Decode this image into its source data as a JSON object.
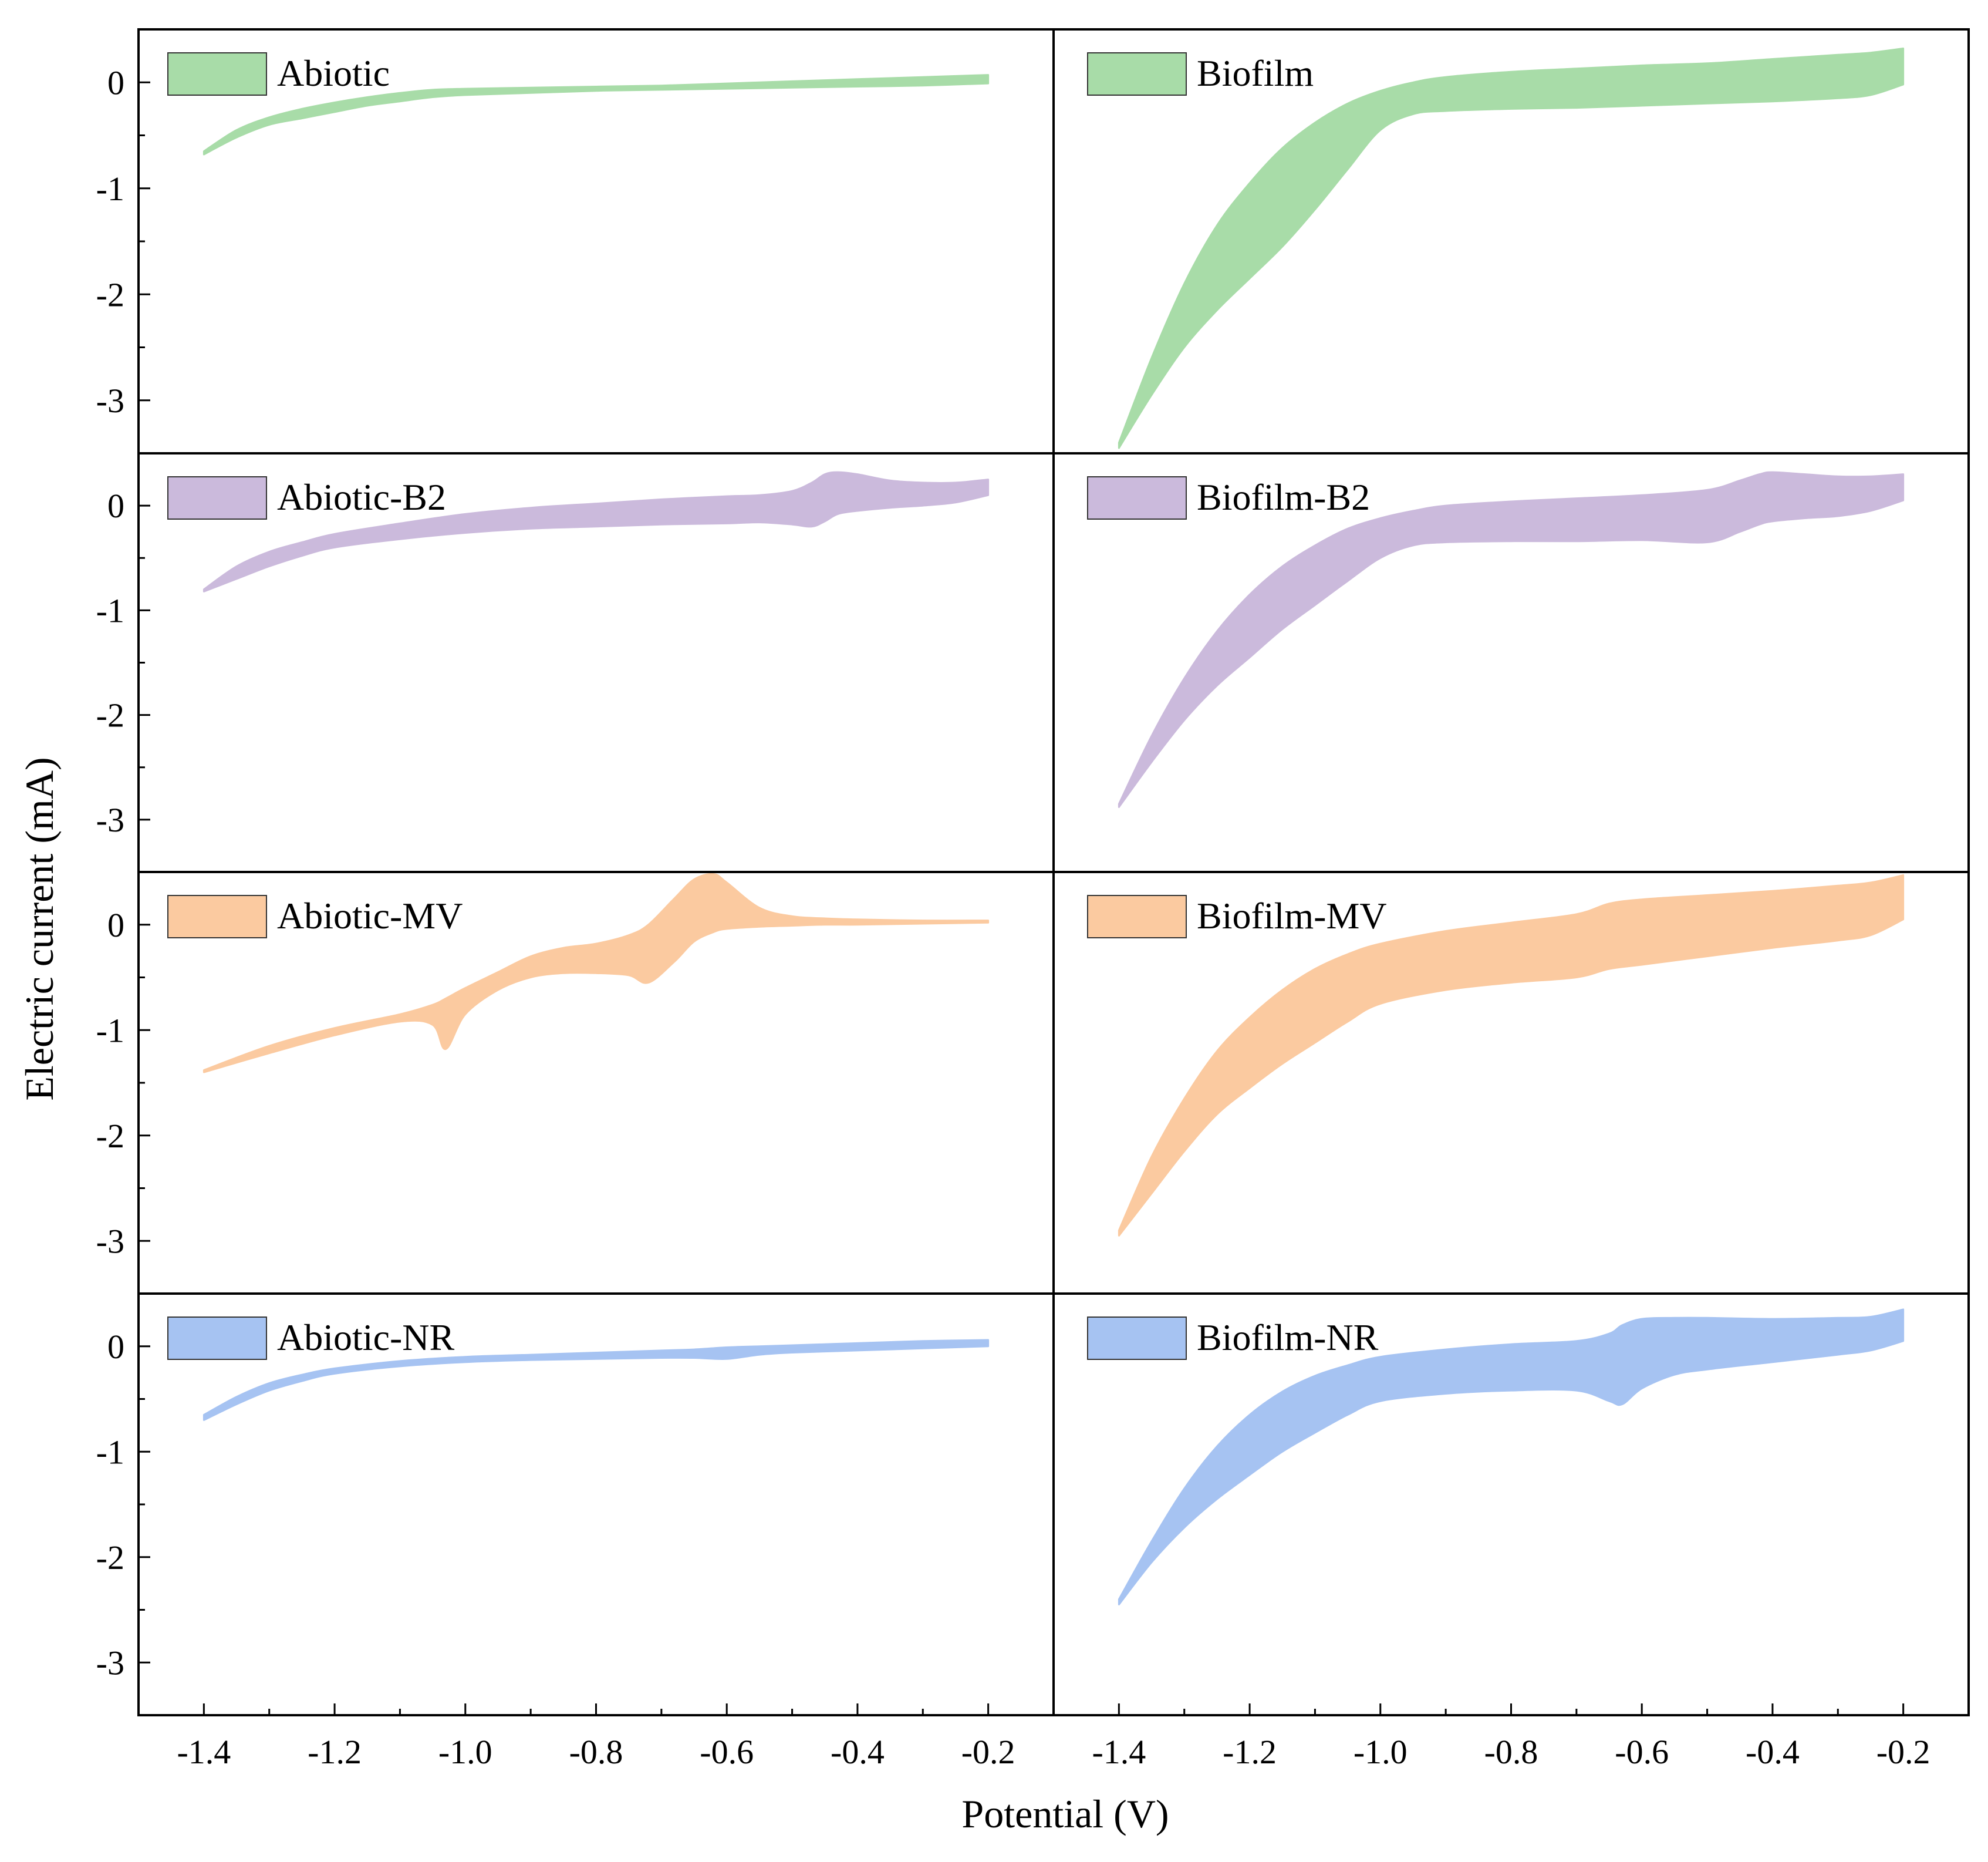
{
  "figure": {
    "xlabel": "Potential (V)",
    "ylabel": "Electric current (mA)",
    "x_ticks": [
      -1.4,
      -1.2,
      -1.0,
      -0.8,
      -0.6,
      -0.4,
      -0.2
    ],
    "x_tick_labels": [
      "-1.4",
      "-1.2",
      "-1.0",
      "-0.8",
      "-0.6",
      "-0.4",
      "-0.2"
    ],
    "y_ticks": [
      0,
      -1,
      -2,
      -3
    ],
    "y_tick_labels": [
      "0",
      "-1",
      "-2",
      "-3"
    ],
    "xlim": [
      -1.5,
      -0.1
    ],
    "ylim": [
      -3.5,
      0.5
    ]
  },
  "chart_data": [
    {
      "type": "area",
      "id": "abiotic",
      "title": "Abiotic",
      "color": "#a8dca8",
      "col": 0,
      "row": 0,
      "x": [
        -1.4,
        -1.35,
        -1.3,
        -1.25,
        -1.2,
        -1.15,
        -1.1,
        -1.05,
        -1.0,
        -0.9,
        -0.8,
        -0.7,
        -0.6,
        -0.5,
        -0.4,
        -0.3,
        -0.2
      ],
      "upper": [
        -0.65,
        -0.45,
        -0.33,
        -0.25,
        -0.19,
        -0.14,
        -0.1,
        -0.07,
        -0.06,
        -0.05,
        -0.04,
        -0.03,
        -0.01,
        0.01,
        0.03,
        0.05,
        0.07
      ],
      "lower": [
        -0.68,
        -0.52,
        -0.4,
        -0.34,
        -0.28,
        -0.22,
        -0.18,
        -0.14,
        -0.12,
        -0.1,
        -0.08,
        -0.07,
        -0.06,
        -0.05,
        -0.04,
        -0.03,
        -0.01
      ]
    },
    {
      "type": "area",
      "id": "biofilm",
      "title": "Biofilm",
      "color": "#a8dca8",
      "col": 1,
      "row": 0,
      "x": [
        -1.4,
        -1.35,
        -1.3,
        -1.25,
        -1.2,
        -1.15,
        -1.1,
        -1.05,
        -1.0,
        -0.95,
        -0.9,
        -0.8,
        -0.7,
        -0.6,
        -0.5,
        -0.4,
        -0.3,
        -0.25,
        -0.2
      ],
      "upper": [
        -3.4,
        -2.6,
        -1.9,
        -1.35,
        -0.95,
        -0.62,
        -0.38,
        -0.2,
        -0.08,
        0.0,
        0.05,
        0.1,
        0.13,
        0.16,
        0.18,
        0.22,
        0.26,
        0.28,
        0.32
      ],
      "lower": [
        -3.45,
        -2.95,
        -2.5,
        -2.15,
        -1.85,
        -1.55,
        -1.2,
        -0.82,
        -0.45,
        -0.3,
        -0.27,
        -0.25,
        -0.24,
        -0.22,
        -0.2,
        -0.18,
        -0.15,
        -0.12,
        -0.02
      ]
    },
    {
      "type": "area",
      "id": "abiotic-b2",
      "title": "Abiotic-B2",
      "color": "#cbbadc",
      "col": 0,
      "row": 1,
      "x": [
        -1.4,
        -1.35,
        -1.3,
        -1.25,
        -1.2,
        -1.1,
        -1.0,
        -0.9,
        -0.8,
        -0.7,
        -0.6,
        -0.55,
        -0.5,
        -0.47,
        -0.45,
        -0.43,
        -0.4,
        -0.35,
        -0.3,
        -0.25,
        -0.2
      ],
      "upper": [
        -0.8,
        -0.58,
        -0.44,
        -0.35,
        -0.27,
        -0.17,
        -0.08,
        -0.02,
        0.02,
        0.06,
        0.09,
        0.1,
        0.14,
        0.22,
        0.3,
        0.32,
        0.3,
        0.24,
        0.22,
        0.22,
        0.25
      ],
      "lower": [
        -0.82,
        -0.7,
        -0.58,
        -0.48,
        -0.4,
        -0.32,
        -0.26,
        -0.22,
        -0.2,
        -0.18,
        -0.17,
        -0.16,
        -0.18,
        -0.2,
        -0.15,
        -0.08,
        -0.05,
        -0.02,
        0.0,
        0.03,
        0.1
      ]
    },
    {
      "type": "area",
      "id": "biofilm-b2",
      "title": "Biofilm-B2",
      "color": "#cbbadc",
      "col": 1,
      "row": 1,
      "x": [
        -1.4,
        -1.35,
        -1.3,
        -1.25,
        -1.2,
        -1.15,
        -1.1,
        -1.05,
        -1.0,
        -0.95,
        -0.9,
        -0.8,
        -0.7,
        -0.6,
        -0.5,
        -0.45,
        -0.42,
        -0.4,
        -0.35,
        -0.3,
        -0.25,
        -0.2
      ],
      "upper": [
        -2.85,
        -2.2,
        -1.65,
        -1.2,
        -0.85,
        -0.58,
        -0.38,
        -0.22,
        -0.12,
        -0.05,
        0.0,
        0.04,
        0.07,
        0.1,
        0.15,
        0.24,
        0.3,
        0.32,
        0.3,
        0.28,
        0.28,
        0.3
      ],
      "lower": [
        -2.88,
        -2.45,
        -2.05,
        -1.72,
        -1.45,
        -1.18,
        -0.95,
        -0.72,
        -0.5,
        -0.38,
        -0.35,
        -0.34,
        -0.34,
        -0.33,
        -0.35,
        -0.25,
        -0.18,
        -0.15,
        -0.12,
        -0.1,
        -0.05,
        0.05
      ]
    },
    {
      "type": "area",
      "id": "abiotic-mv",
      "title": "Abiotic-MV",
      "color": "#fbcaa0",
      "col": 0,
      "row": 2,
      "x": [
        -1.4,
        -1.3,
        -1.2,
        -1.1,
        -1.05,
        -1.03,
        -1.0,
        -0.95,
        -0.9,
        -0.85,
        -0.8,
        -0.75,
        -0.72,
        -0.68,
        -0.65,
        -0.62,
        -0.6,
        -0.55,
        -0.5,
        -0.45,
        -0.4,
        -0.3,
        -0.2
      ],
      "upper": [
        -1.38,
        -1.15,
        -0.98,
        -0.85,
        -0.76,
        -0.7,
        -0.6,
        -0.45,
        -0.3,
        -0.22,
        -0.18,
        -0.1,
        0.0,
        0.25,
        0.43,
        0.48,
        0.4,
        0.16,
        0.08,
        0.06,
        0.05,
        0.04,
        0.04
      ],
      "lower": [
        -1.4,
        -1.22,
        -1.05,
        -0.92,
        -0.95,
        -1.18,
        -0.85,
        -0.62,
        -0.5,
        -0.46,
        -0.46,
        -0.48,
        -0.55,
        -0.35,
        -0.16,
        -0.07,
        -0.04,
        -0.02,
        -0.01,
        0.0,
        0.0,
        0.01,
        0.02
      ]
    },
    {
      "type": "area",
      "id": "biofilm-mv",
      "title": "Biofilm-MV",
      "color": "#fbcaa0",
      "col": 1,
      "row": 2,
      "x": [
        -1.4,
        -1.35,
        -1.3,
        -1.25,
        -1.2,
        -1.15,
        -1.1,
        -1.05,
        -1.0,
        -0.9,
        -0.8,
        -0.7,
        -0.65,
        -0.6,
        -0.5,
        -0.4,
        -0.3,
        -0.25,
        -0.2
      ],
      "upper": [
        -2.9,
        -2.2,
        -1.65,
        -1.2,
        -0.88,
        -0.62,
        -0.42,
        -0.28,
        -0.18,
        -0.06,
        0.02,
        0.1,
        0.2,
        0.24,
        0.28,
        0.32,
        0.37,
        0.4,
        0.47
      ],
      "lower": [
        -2.95,
        -2.55,
        -2.15,
        -1.8,
        -1.55,
        -1.32,
        -1.12,
        -0.92,
        -0.75,
        -0.62,
        -0.55,
        -0.5,
        -0.42,
        -0.38,
        -0.3,
        -0.22,
        -0.15,
        -0.1,
        0.05
      ]
    },
    {
      "type": "area",
      "id": "abiotic-nr",
      "title": "Abiotic-NR",
      "color": "#a6c3f2",
      "col": 0,
      "row": 3,
      "x": [
        -1.4,
        -1.35,
        -1.3,
        -1.25,
        -1.2,
        -1.1,
        -1.0,
        -0.9,
        -0.8,
        -0.7,
        -0.65,
        -0.6,
        -0.55,
        -0.5,
        -0.4,
        -0.3,
        -0.2
      ],
      "upper": [
        -0.65,
        -0.48,
        -0.35,
        -0.27,
        -0.21,
        -0.14,
        -0.1,
        -0.08,
        -0.06,
        -0.04,
        -0.03,
        -0.01,
        0.0,
        0.01,
        0.03,
        0.05,
        0.06
      ],
      "lower": [
        -0.7,
        -0.55,
        -0.42,
        -0.33,
        -0.26,
        -0.19,
        -0.15,
        -0.13,
        -0.12,
        -0.11,
        -0.11,
        -0.12,
        -0.08,
        -0.06,
        -0.04,
        -0.02,
        0.0
      ]
    },
    {
      "type": "area",
      "id": "biofilm-nr",
      "title": "Biofilm-NR",
      "color": "#a6c3f2",
      "col": 1,
      "row": 3,
      "x": [
        -1.4,
        -1.35,
        -1.3,
        -1.25,
        -1.2,
        -1.15,
        -1.1,
        -1.05,
        -1.0,
        -0.9,
        -0.8,
        -0.7,
        -0.65,
        -0.63,
        -0.6,
        -0.55,
        -0.5,
        -0.4,
        -0.3,
        -0.25,
        -0.2
      ],
      "upper": [
        -2.4,
        -1.85,
        -1.35,
        -0.95,
        -0.65,
        -0.43,
        -0.28,
        -0.18,
        -0.1,
        -0.03,
        0.02,
        0.05,
        0.12,
        0.2,
        0.26,
        0.27,
        0.27,
        0.26,
        0.27,
        0.28,
        0.35
      ],
      "lower": [
        -2.45,
        -2.05,
        -1.72,
        -1.45,
        -1.22,
        -1.0,
        -0.82,
        -0.65,
        -0.52,
        -0.45,
        -0.42,
        -0.42,
        -0.52,
        -0.55,
        -0.4,
        -0.27,
        -0.22,
        -0.15,
        -0.08,
        -0.04,
        0.05
      ]
    }
  ]
}
